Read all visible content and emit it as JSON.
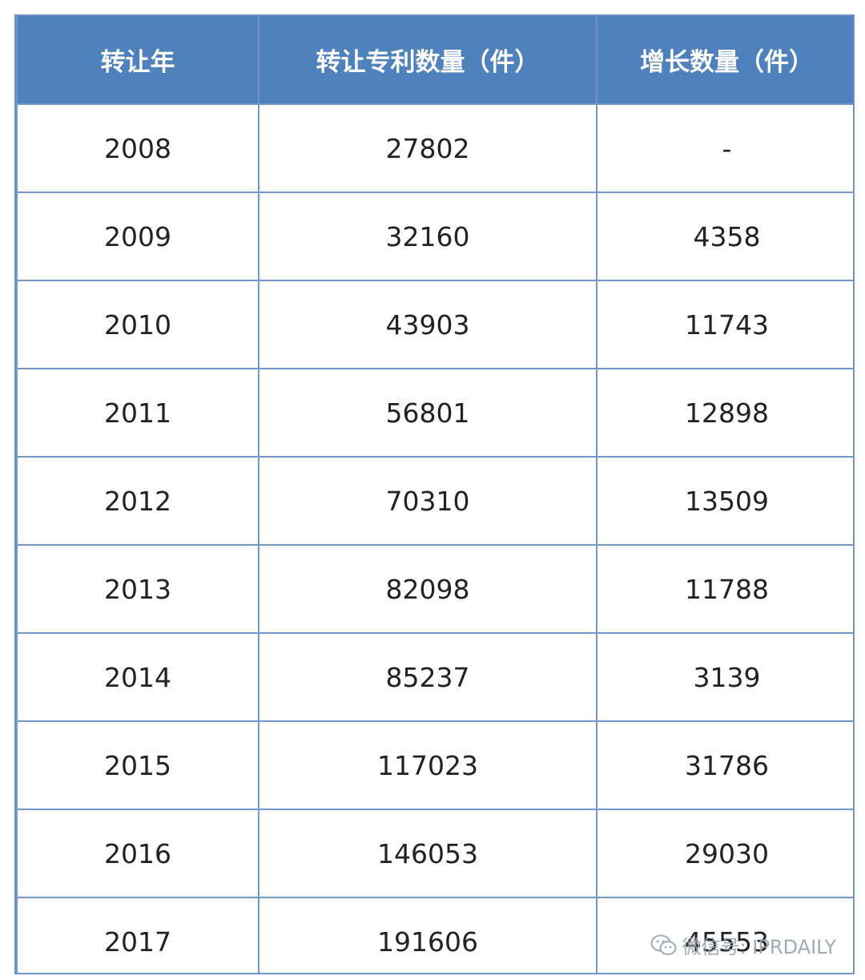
{
  "table": {
    "headers": [
      "转让年",
      "转让专利数量（件）",
      "增长数量（件）"
    ],
    "rows": [
      [
        "2008",
        "27802",
        "-"
      ],
      [
        "2009",
        "32160",
        "4358"
      ],
      [
        "2010",
        "43903",
        "11743"
      ],
      [
        "2011",
        "56801",
        "12898"
      ],
      [
        "2012",
        "70310",
        "13509"
      ],
      [
        "2013",
        "82098",
        "11788"
      ],
      [
        "2014",
        "85237",
        "3139"
      ],
      [
        "2015",
        "117023",
        "31786"
      ],
      [
        "2016",
        "146053",
        "29030"
      ],
      [
        "2017",
        "191606",
        "45553"
      ]
    ]
  },
  "watermark": {
    "text": "微信号: IPRDAILY",
    "icon": "wechat-icon"
  },
  "colors": {
    "header_bg": "#4f81bd",
    "border": "#7398cc"
  }
}
